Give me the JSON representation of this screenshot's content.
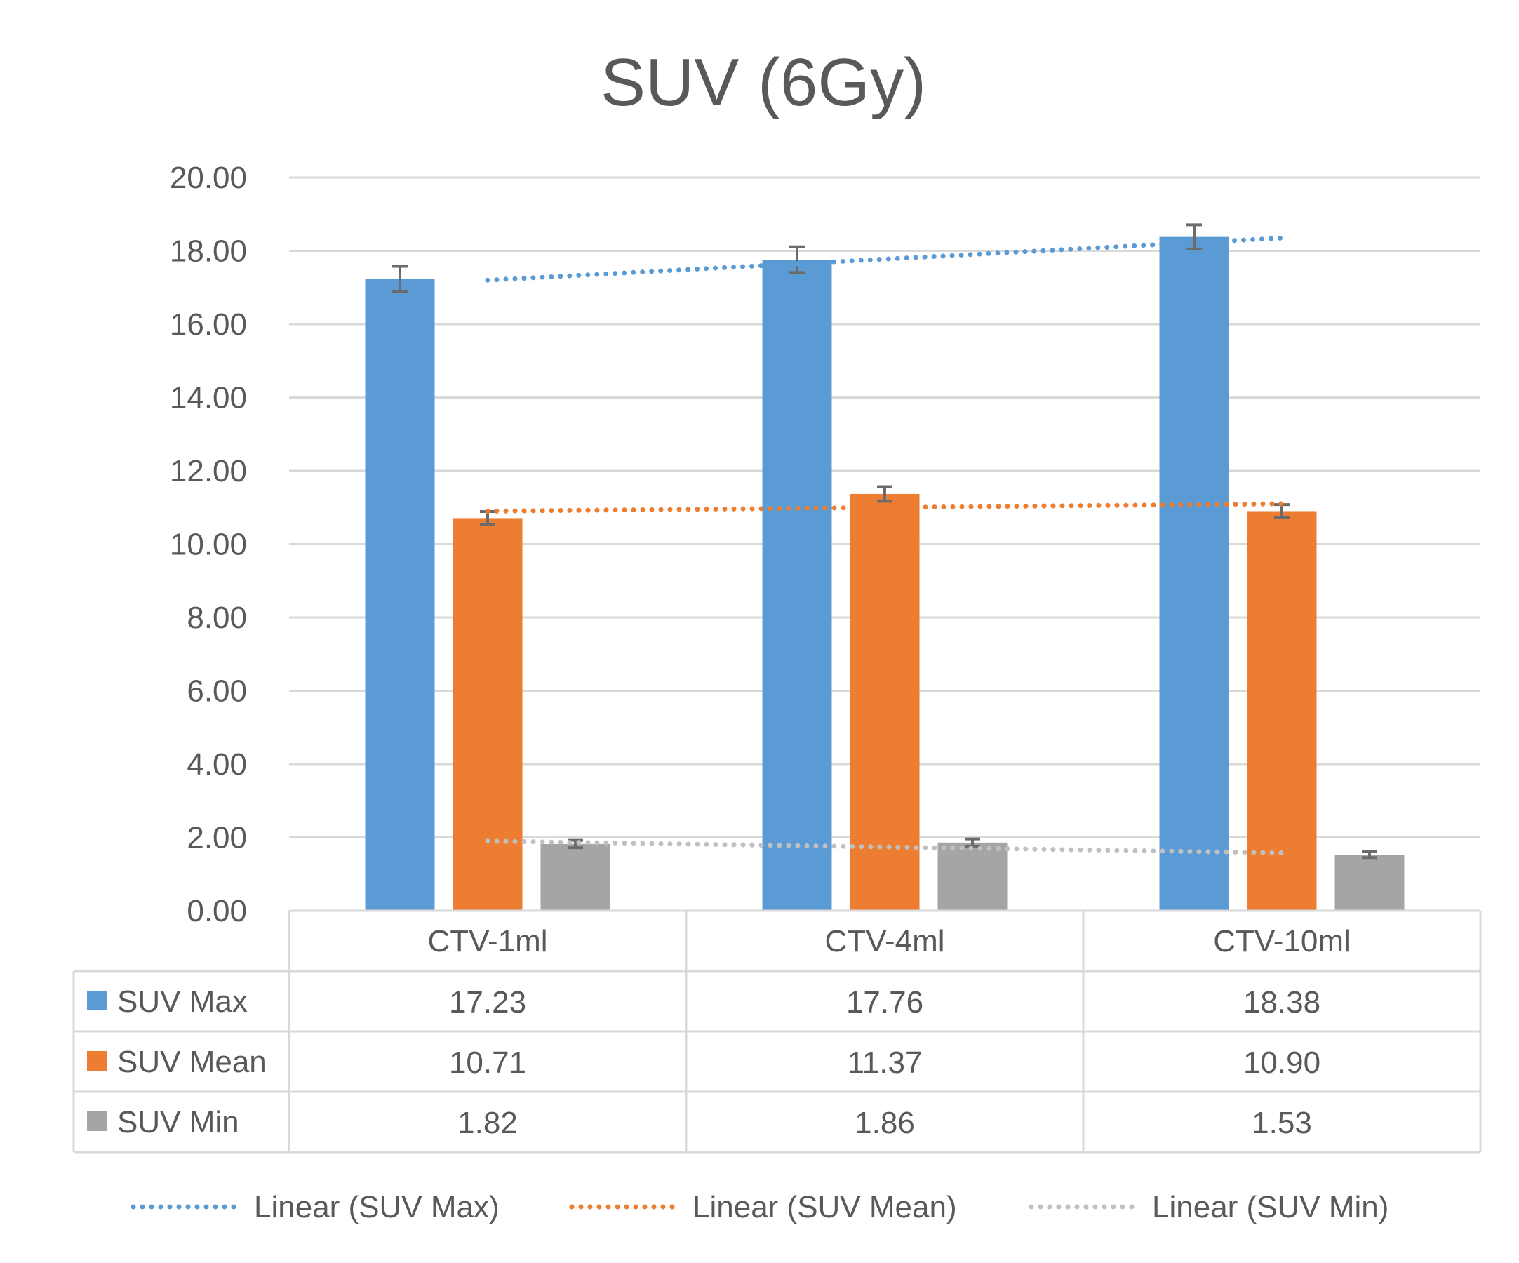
{
  "chart_data": {
    "type": "bar",
    "title": "SUV (6Gy)",
    "categories": [
      "CTV-1ml",
      "CTV-4ml",
      "CTV-10ml"
    ],
    "ylim": [
      0,
      20
    ],
    "yticks": [
      "0.00",
      "2.00",
      "4.00",
      "6.00",
      "8.00",
      "10.00",
      "12.00",
      "14.00",
      "16.00",
      "18.00",
      "20.00"
    ],
    "grid": true,
    "series": [
      {
        "name": "SUV Max",
        "color": "#5b9bd5",
        "values": [
          17.23,
          17.76,
          18.38
        ],
        "labels": [
          "17.23",
          "17.76",
          "18.38"
        ],
        "errors": [
          0.35,
          0.35,
          0.33
        ]
      },
      {
        "name": "SUV Mean",
        "color": "#ed7d31",
        "values": [
          10.71,
          11.37,
          10.9
        ],
        "labels": [
          "10.71",
          "11.37",
          "10.90"
        ],
        "errors": [
          0.18,
          0.2,
          0.18
        ]
      },
      {
        "name": "SUV Min",
        "color": "#a5a5a5",
        "values": [
          1.82,
          1.86,
          1.53
        ],
        "labels": [
          "1.82",
          "1.86",
          "1.53"
        ],
        "errors": [
          0.1,
          0.1,
          0.08
        ]
      }
    ],
    "trendlines": [
      {
        "name": "Linear (SUV Max)",
        "color": "#5b9bd5",
        "start": 17.2,
        "end": 18.35
      },
      {
        "name": "Linear (SUV Mean)",
        "color": "#ed7d31",
        "start": 10.9,
        "end": 11.1
      },
      {
        "name": "Linear (SUV Min)",
        "color": "#c0c0c0",
        "start": 1.9,
        "end": 1.58
      }
    ],
    "legend_position": "bottom",
    "data_table": true
  }
}
